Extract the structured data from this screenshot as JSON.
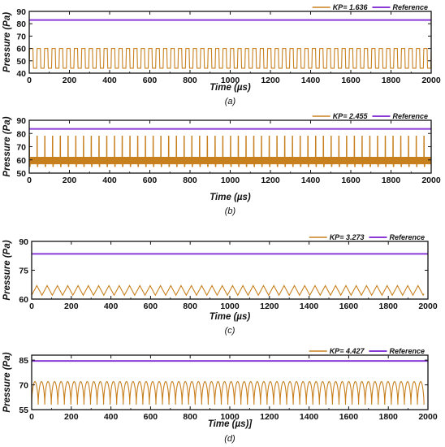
{
  "chart_data": [
    {
      "type": "line",
      "caption": "(a)",
      "xlabel": "Time (µs)",
      "ylabel": "Pressure (Pa)",
      "xlim": [
        0,
        2000
      ],
      "ylim": [
        40,
        90
      ],
      "xticks": [
        0,
        200,
        400,
        600,
        800,
        1000,
        1200,
        1400,
        1600,
        1800,
        2000
      ],
      "yticks": [
        40,
        50,
        60,
        70,
        80,
        90
      ],
      "legend_position": "top-right",
      "series": [
        {
          "name": "KP= 1.636",
          "color": "#c8801e",
          "shape": "square",
          "period": 37,
          "min": 44,
          "max": 60,
          "x_start": 0,
          "x_end": 2000
        },
        {
          "name": "Reference",
          "color": "#8a3bd6",
          "shape": "constant",
          "value": 83,
          "x_start": 0,
          "x_end": 2000
        }
      ]
    },
    {
      "type": "line",
      "caption": "(b)",
      "xlabel": "Time (µs)",
      "ylabel": "Pressure (Pa)",
      "xlim": [
        0,
        2000
      ],
      "ylim": [
        50,
        90
      ],
      "xticks": [
        0,
        200,
        400,
        600,
        800,
        1000,
        1200,
        1400,
        1600,
        1800,
        2000
      ],
      "yticks": [
        50,
        60,
        70,
        80,
        90
      ],
      "legend_position": "top-right",
      "series": [
        {
          "name": "KP= 2.455",
          "color": "#c8801e",
          "shape": "spiky",
          "period": 38.5,
          "min": 55,
          "max": 78,
          "band_low": 57,
          "band_high": 62,
          "x_start": 0,
          "x_end": 2000
        },
        {
          "name": "Reference",
          "color": "#8a3bd6",
          "shape": "constant",
          "value": 83.5,
          "x_start": 0,
          "x_end": 2000
        }
      ]
    },
    {
      "type": "line",
      "caption": "(c)",
      "xlabel": "Time (µs)",
      "ylabel": "Pressure (Pa)",
      "xlim": [
        0,
        2000
      ],
      "ylim": [
        60,
        90
      ],
      "xticks": [
        0,
        200,
        400,
        600,
        800,
        1000,
        1200,
        1400,
        1600,
        1800,
        2000
      ],
      "yticks": [
        60,
        75,
        90
      ],
      "legend_position": "top-right",
      "series": [
        {
          "name": "KP= 3.273",
          "color": "#c8801e",
          "shape": "triangle",
          "period": 52,
          "min": 62,
          "max": 67,
          "x_start": 0,
          "x_end": 1980
        },
        {
          "name": "Reference",
          "color": "#8a3bd6",
          "shape": "constant",
          "value": 83.5,
          "x_start": 0,
          "x_end": 2000
        }
      ]
    },
    {
      "type": "line",
      "caption": "(d)",
      "xlabel": "Time (µs)]",
      "ylabel": "Pressure (Pa)",
      "xlim": [
        0,
        2000
      ],
      "ylim": [
        55,
        88
      ],
      "xticks": [
        0,
        200,
        400,
        600,
        800,
        1000,
        1200,
        1400,
        1600,
        1800,
        2000
      ],
      "yticks": [
        55,
        70,
        85
      ],
      "legend_position": "top-right",
      "series": [
        {
          "name": "KP= 4.427",
          "color": "#c8801e",
          "shape": "scallop",
          "period": 33,
          "min": 58,
          "max": 72,
          "x_start": 0,
          "x_end": 1980
        },
        {
          "name": "Reference",
          "color": "#8a3bd6",
          "shape": "constant",
          "value": 84.5,
          "x_start": 0,
          "x_end": 2000
        }
      ]
    }
  ]
}
